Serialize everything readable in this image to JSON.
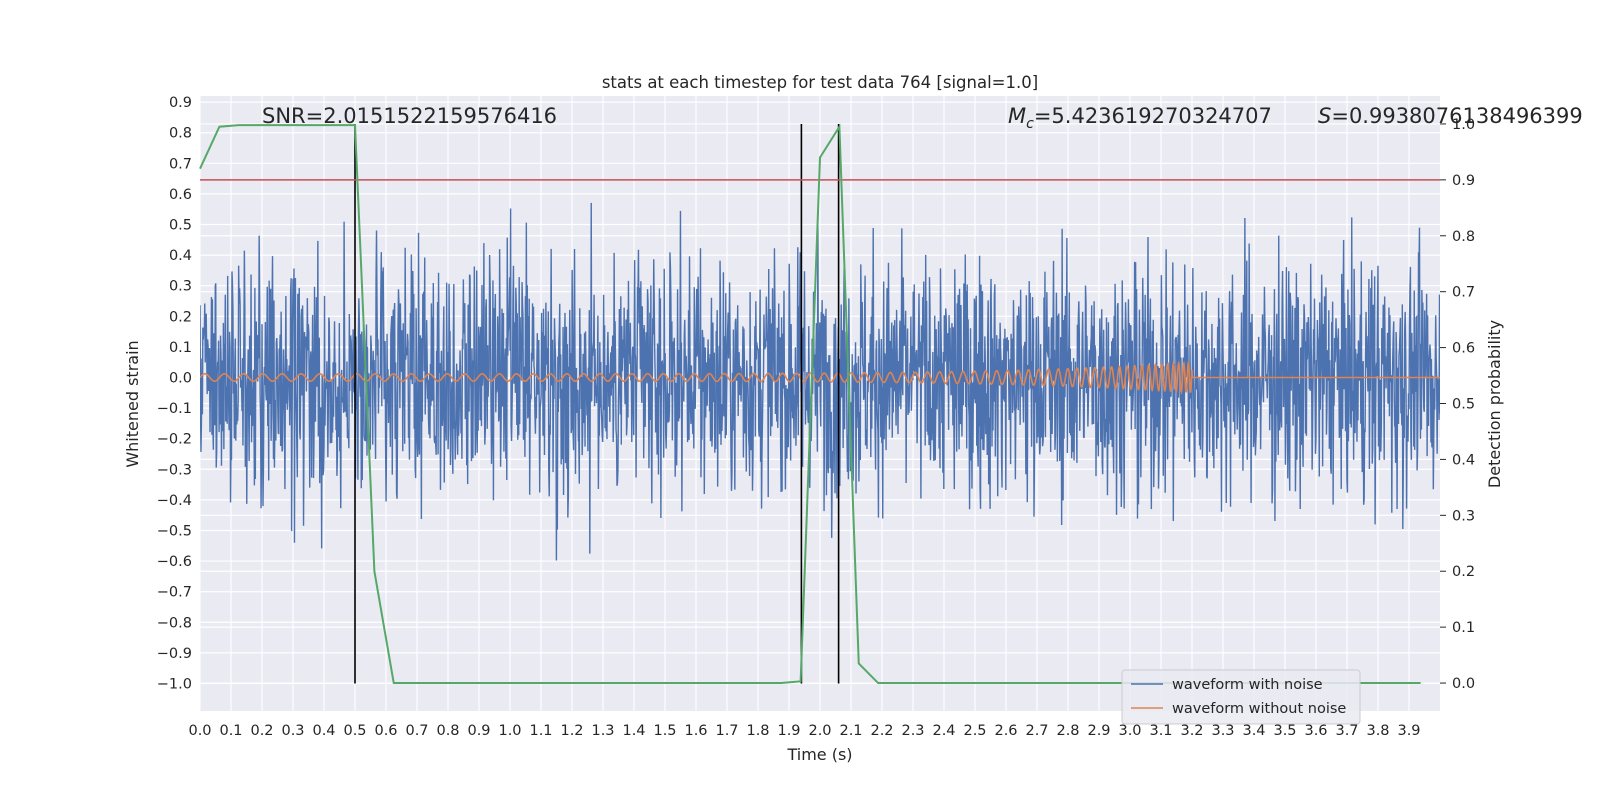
{
  "chart_data": {
    "type": "line",
    "title": "stats at each timestep for test data 764 [signal=1.0]",
    "xlabel": "Time (s)",
    "ylabel": "Whitened strain",
    "y2label": "Detection probability",
    "xlim": [
      0.0,
      4.0
    ],
    "ylim": [
      -1.09,
      0.92
    ],
    "y2lim": [
      -0.05,
      1.05
    ],
    "x_ticks": [
      0.0,
      0.1,
      0.2,
      0.3,
      0.4,
      0.5,
      0.6,
      0.7,
      0.8,
      0.9,
      1.0,
      1.1,
      1.2,
      1.3,
      1.4,
      1.5,
      1.6,
      1.7,
      1.8,
      1.9,
      2.0,
      2.1,
      2.2,
      2.3,
      2.4,
      2.5,
      2.6,
      2.7,
      2.8,
      2.9,
      3.0,
      3.1,
      3.2,
      3.3,
      3.4,
      3.5,
      3.6,
      3.7,
      3.8,
      3.9
    ],
    "x_tick_labels": [
      "0.0",
      "0.1",
      "0.2",
      "0.3",
      "0.4",
      "0.5",
      "0.6",
      "0.7",
      "0.8",
      "0.9",
      "1.0",
      "1.1",
      "1.2",
      "1.3",
      "1.4",
      "1.5",
      "1.6",
      "1.7",
      "1.8",
      "1.9",
      "2.0",
      "2.1",
      "2.2",
      "2.3",
      "2.4",
      "2.5",
      "2.6",
      "2.7",
      "2.8",
      "2.9",
      "3.0",
      "3.1",
      "3.2",
      "3.3",
      "3.4",
      "3.5",
      "3.6",
      "3.7",
      "3.8",
      "3.9"
    ],
    "y_ticks": [
      0.9,
      0.8,
      0.7,
      0.6,
      0.5,
      0.4,
      0.3,
      0.2,
      0.1,
      0.0,
      -0.1,
      -0.2,
      -0.3,
      -0.4,
      -0.5,
      -0.6,
      -0.7,
      -0.8,
      -0.9,
      -1.0
    ],
    "y_tick_labels": [
      "0.9",
      "0.8",
      "0.7",
      "0.6",
      "0.5",
      "0.4",
      "0.3",
      "0.2",
      "0.1",
      "0.0",
      "−0.1",
      "−0.2",
      "−0.3",
      "−0.4",
      "−0.5",
      "−0.6",
      "−0.7",
      "−0.8",
      "−0.9",
      "−1.0"
    ],
    "y2_ticks": [
      1.0,
      0.9,
      0.8,
      0.7,
      0.6,
      0.5,
      0.4,
      0.3,
      0.2,
      0.1,
      0.0
    ],
    "y2_tick_labels": [
      "1.0",
      "0.9",
      "0.8",
      "0.7",
      "0.6",
      "0.5",
      "0.4",
      "0.3",
      "0.2",
      "0.1",
      "0.0"
    ],
    "series": [
      {
        "name": "waveform with noise",
        "color": "#4c72b0",
        "axis": "left",
        "x_range": [
          0.0,
          4.0
        ],
        "typical_amplitude": 0.35,
        "peak_max": 0.79,
        "peak_min": -1.0
      },
      {
        "name": "waveform without noise",
        "color": "#dd8452",
        "axis": "left",
        "x_range": [
          0.0,
          4.0
        ],
        "chirp_end_time": 3.2,
        "amplitude_start": 0.012,
        "amplitude_end": 0.05
      },
      {
        "name": "detection probability",
        "color": "#55a868",
        "axis": "right",
        "x": [
          0.0,
          0.0625,
          0.125,
          0.1875,
          0.25,
          0.3125,
          0.375,
          0.4375,
          0.5,
          0.5625,
          0.625,
          0.6875,
          0.75,
          1.0,
          1.25,
          1.5,
          1.75,
          1.875,
          1.9375,
          2.0,
          2.0625,
          2.125,
          2.1875,
          2.25,
          2.5,
          3.0,
          3.5,
          3.9375
        ],
        "y": [
          0.92,
          0.995,
          0.998,
          0.998,
          0.998,
          0.998,
          0.998,
          0.998,
          0.998,
          0.2,
          0.0,
          0.0,
          0.0,
          0.0,
          0.0,
          0.0,
          0.0,
          0.0,
          0.003,
          0.94,
          0.995,
          0.035,
          0.0,
          0.0,
          0.0,
          0.0,
          0.0,
          0.0
        ]
      }
    ],
    "threshold": {
      "value": 0.9,
      "axis": "right",
      "color": "#c44e52"
    },
    "vertical_markers": [
      0.5,
      1.94,
      2.06
    ],
    "annotations": {
      "snr": "SNR=2.0151522159576416",
      "mc_symbol": "M",
      "mc_sub": "c",
      "mc_value": "=5.423619270324707",
      "s_symbol": "S",
      "s_value": "=0.9938076138496399"
    },
    "legend": {
      "placement": "lower-right",
      "items": [
        "waveform with noise",
        "waveform without noise"
      ]
    },
    "style": {
      "plot_background": "#eaeaf2",
      "grid_color": "#ffffff",
      "marker_color": "#000000"
    }
  }
}
